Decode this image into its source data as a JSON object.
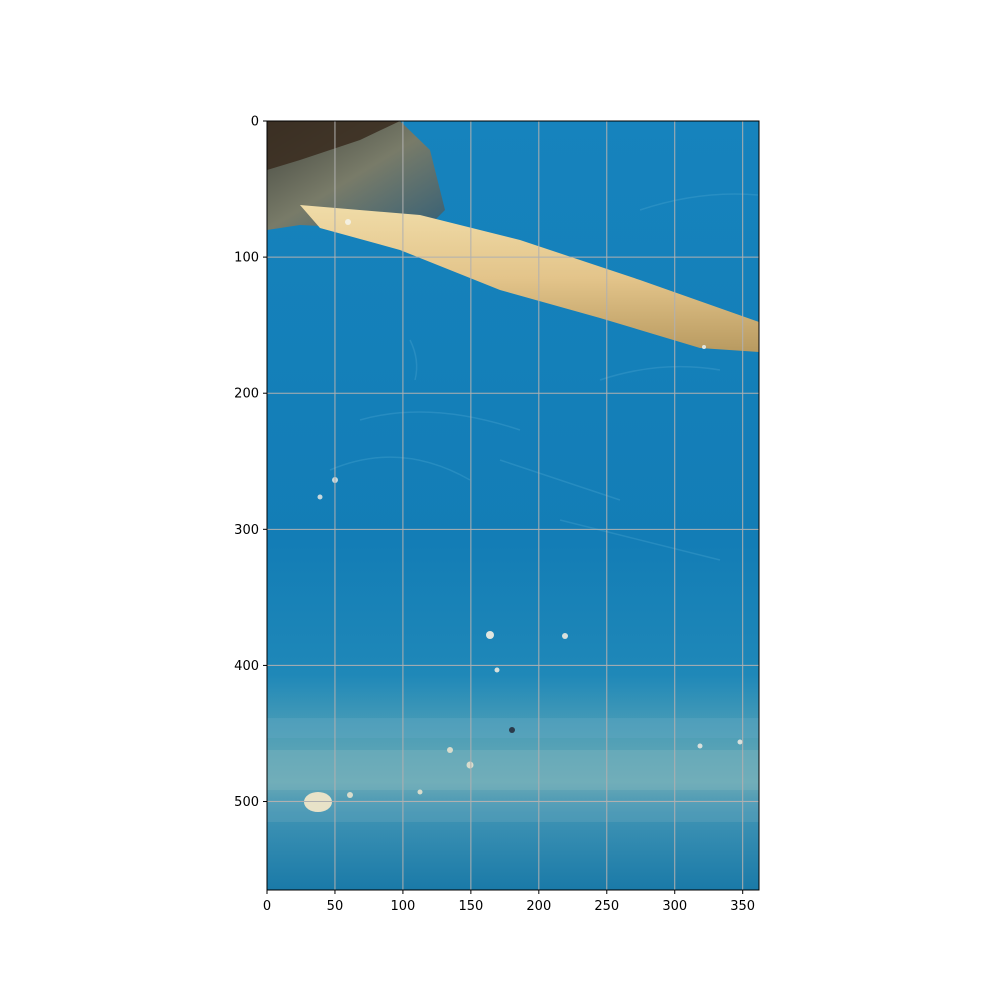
{
  "image": {
    "description_colors": {
      "water": "#1480b8",
      "water_light": "#2a90c0",
      "sediment": "#6aa8b8",
      "stick": "#e6c98c",
      "grid": "#b0b0b0"
    },
    "extent": {
      "x": [
        0,
        362
      ],
      "y": [
        565,
        0
      ]
    },
    "grid": true
  },
  "axes": {
    "x_ticks": [
      {
        "value": 0,
        "label": "0"
      },
      {
        "value": 50,
        "label": "50"
      },
      {
        "value": 100,
        "label": "100"
      },
      {
        "value": 150,
        "label": "150"
      },
      {
        "value": 200,
        "label": "200"
      },
      {
        "value": 250,
        "label": "250"
      },
      {
        "value": 300,
        "label": "300"
      },
      {
        "value": 350,
        "label": "350"
      }
    ],
    "y_ticks": [
      {
        "value": 0,
        "label": "0"
      },
      {
        "value": 100,
        "label": "100"
      },
      {
        "value": 200,
        "label": "200"
      },
      {
        "value": 300,
        "label": "300"
      },
      {
        "value": 400,
        "label": "400"
      },
      {
        "value": 500,
        "label": "500"
      }
    ]
  }
}
